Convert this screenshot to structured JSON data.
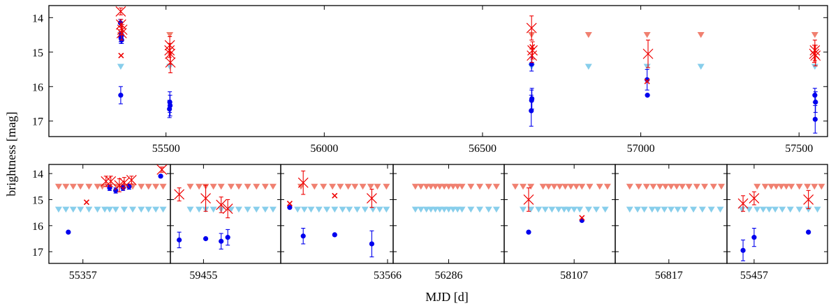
{
  "chart_data": {
    "type": "scatter",
    "xlabel": "MJD [d]",
    "ylabel": "brightness [mag]",
    "colors": {
      "bright_x": "#ee0000",
      "dot": "#0000ee",
      "upper_limit_red": "#f08070",
      "upper_limit_blue": "#87ceeb"
    },
    "main": {
      "xlim": [
        55130,
        57590
      ],
      "ylim": [
        17.45,
        13.65
      ],
      "xticks": [
        55500,
        56000,
        56500,
        57000,
        57500
      ],
      "yticks": [
        14,
        15,
        16,
        17
      ],
      "series": {
        "x_points": [
          {
            "x": 55357,
            "y": 13.82,
            "e": 0.1,
            "big": true
          },
          {
            "x": 55358,
            "y": 14.2,
            "e": 0.15,
            "big": true
          },
          {
            "x": 55360,
            "y": 14.45,
            "e": 0.2,
            "big": true
          },
          {
            "x": 55362,
            "y": 14.35,
            "e": 0.15,
            "big": true
          },
          {
            "x": 55358,
            "y": 15.1,
            "e": 0,
            "big": false
          },
          {
            "x": 55512,
            "y": 14.8,
            "e": 0.25,
            "big": true
          },
          {
            "x": 55513,
            "y": 15.05,
            "e": 0.3,
            "big": true
          },
          {
            "x": 55514,
            "y": 15.3,
            "e": 0.3,
            "big": true
          },
          {
            "x": 55511,
            "y": 14.95,
            "e": 0.2,
            "big": true
          },
          {
            "x": 56655,
            "y": 14.3,
            "e": 0.35,
            "big": true
          },
          {
            "x": 56658,
            "y": 14.95,
            "e": 0.25,
            "big": true
          },
          {
            "x": 56656,
            "y": 15.1,
            "e": 0.2,
            "big": true
          },
          {
            "x": 56657,
            "y": 14.85,
            "e": 0,
            "big": false
          },
          {
            "x": 57023,
            "y": 15.05,
            "e": 0.4,
            "big": true
          },
          {
            "x": 57020,
            "y": 15.85,
            "e": 0,
            "big": false
          },
          {
            "x": 57550,
            "y": 14.95,
            "e": 0.3,
            "big": true
          },
          {
            "x": 57552,
            "y": 15.1,
            "e": 0.3,
            "big": true
          },
          {
            "x": 57548,
            "y": 15.05,
            "e": 0.25,
            "big": true
          }
        ],
        "dots": [
          {
            "x": 55357,
            "y": 16.25,
            "e": 0.25
          },
          {
            "x": 55357,
            "y": 14.55,
            "e": 0.15
          },
          {
            "x": 55358,
            "y": 14.6,
            "e": 0.15
          },
          {
            "x": 55360,
            "y": 14.65,
            "e": 0.1
          },
          {
            "x": 55359,
            "y": 14.5,
            "e": 0.1
          },
          {
            "x": 55356,
            "y": 14.15,
            "e": 0.1
          },
          {
            "x": 55512,
            "y": 16.45,
            "e": 0.3
          },
          {
            "x": 55513,
            "y": 16.55,
            "e": 0.3
          },
          {
            "x": 55511,
            "y": 16.65,
            "e": 0.25
          },
          {
            "x": 56655,
            "y": 16.4,
            "e": 0.3
          },
          {
            "x": 56656,
            "y": 16.35,
            "e": 0.3
          },
          {
            "x": 56654,
            "y": 16.7,
            "e": 0.45
          },
          {
            "x": 56655,
            "y": 15.35,
            "e": 0.2
          },
          {
            "x": 57020,
            "y": 15.8,
            "e": 0.3
          },
          {
            "x": 57021,
            "y": 16.25,
            "e": 0
          },
          {
            "x": 57550,
            "y": 16.25,
            "e": 0.2
          },
          {
            "x": 57552,
            "y": 16.45,
            "e": 0.3
          },
          {
            "x": 57551,
            "y": 16.95,
            "e": 0.4
          }
        ],
        "limits_red": [
          {
            "x": 55357,
            "y": 14.5
          },
          {
            "x": 55512,
            "y": 14.5
          },
          {
            "x": 56655,
            "y": 14.5
          },
          {
            "x": 56835,
            "y": 14.5
          },
          {
            "x": 57020,
            "y": 14.5
          },
          {
            "x": 57190,
            "y": 14.5
          },
          {
            "x": 57550,
            "y": 14.5
          }
        ],
        "limits_blue": [
          {
            "x": 55357,
            "y": 15.42
          },
          {
            "x": 55512,
            "y": 15.42
          },
          {
            "x": 56655,
            "y": 15.42
          },
          {
            "x": 56835,
            "y": 15.42
          },
          {
            "x": 57020,
            "y": 15.42
          },
          {
            "x": 57190,
            "y": 15.42
          },
          {
            "x": 57550,
            "y": 15.42
          }
        ]
      }
    },
    "panels": [
      {
        "tick": "55357",
        "limits_red": [
          0.08,
          0.14,
          0.2,
          0.26,
          0.33,
          0.4,
          0.44,
          0.5,
          0.56,
          0.62,
          0.69,
          0.76,
          0.82,
          0.88,
          0.94
        ],
        "limits_blue": [
          0.08,
          0.14,
          0.2,
          0.26,
          0.33,
          0.4,
          0.46,
          0.5,
          0.55,
          0.62,
          0.69,
          0.76,
          0.82,
          0.88,
          0.94
        ],
        "x_points": [
          {
            "f": 0.31,
            "y": 15.1,
            "e": 0,
            "big": false
          },
          {
            "f": 0.47,
            "y": 14.3,
            "e": 0.2,
            "big": true
          },
          {
            "f": 0.51,
            "y": 14.3,
            "e": 0.2,
            "big": true
          },
          {
            "f": 0.58,
            "y": 14.45,
            "e": 0.25,
            "big": true
          },
          {
            "f": 0.62,
            "y": 14.35,
            "e": 0.2,
            "big": true
          },
          {
            "f": 0.68,
            "y": 14.25,
            "e": 0.15,
            "big": true
          },
          {
            "f": 0.93,
            "y": 13.85,
            "e": 0.1,
            "big": true
          }
        ],
        "dots": [
          {
            "f": 0.16,
            "y": 16.25,
            "e": 0
          },
          {
            "f": 0.5,
            "y": 14.55,
            "e": 0.1
          },
          {
            "f": 0.55,
            "y": 14.65,
            "e": 0.1
          },
          {
            "f": 0.61,
            "y": 14.55,
            "e": 0.1
          },
          {
            "f": 0.66,
            "y": 14.5,
            "e": 0.1
          },
          {
            "f": 0.92,
            "y": 14.1,
            "e": 0
          }
        ]
      },
      {
        "tick": "59455",
        "limits_red": [
          0.18,
          0.26,
          0.32,
          0.39,
          0.46,
          0.55,
          0.62,
          0.7,
          0.78,
          0.86,
          0.93
        ],
        "limits_blue": [
          0.18,
          0.26,
          0.32,
          0.39,
          0.46,
          0.55,
          0.62,
          0.7,
          0.78,
          0.86,
          0.93
        ],
        "x_points": [
          {
            "f": 0.08,
            "y": 14.8,
            "e": 0.25,
            "big": true
          },
          {
            "f": 0.32,
            "y": 14.95,
            "e": 0.5,
            "big": true
          },
          {
            "f": 0.46,
            "y": 15.2,
            "e": 0.3,
            "big": true
          },
          {
            "f": 0.52,
            "y": 15.35,
            "e": 0.35,
            "big": true
          }
        ],
        "dots": [
          {
            "f": 0.08,
            "y": 16.55,
            "e": 0.3
          },
          {
            "f": 0.32,
            "y": 16.5,
            "e": 0
          },
          {
            "f": 0.46,
            "y": 16.6,
            "e": 0.3
          },
          {
            "f": 0.52,
            "y": 16.45,
            "e": 0.3
          }
        ]
      },
      {
        "tick": "53566",
        "limits_red": [
          0.18,
          0.3,
          0.38,
          0.46,
          0.53,
          0.6,
          0.66,
          0.73,
          0.8,
          0.86,
          0.94
        ],
        "limits_blue": [
          0.15,
          0.21,
          0.27,
          0.34,
          0.41,
          0.48,
          0.55,
          0.61,
          0.68,
          0.75,
          0.82,
          0.88,
          0.94
        ],
        "x_points": [
          {
            "f": 0.08,
            "y": 15.15,
            "e": 0,
            "big": false
          },
          {
            "f": 0.2,
            "y": 14.35,
            "e": 0.45,
            "big": true
          },
          {
            "f": 0.48,
            "y": 14.85,
            "e": 0,
            "big": false
          },
          {
            "f": 0.81,
            "y": 14.95,
            "e": 0.35,
            "big": true
          }
        ],
        "dots": [
          {
            "f": 0.08,
            "y": 15.3,
            "e": 0
          },
          {
            "f": 0.2,
            "y": 16.4,
            "e": 0.3
          },
          {
            "f": 0.48,
            "y": 16.35,
            "e": 0
          },
          {
            "f": 0.81,
            "y": 16.7,
            "e": 0.5
          }
        ]
      },
      {
        "tick": "56286",
        "limits_red": [
          0.2,
          0.25,
          0.3,
          0.34,
          0.38,
          0.42,
          0.46,
          0.5,
          0.54,
          0.58,
          0.62,
          0.7,
          0.78,
          0.86,
          0.93
        ],
        "limits_blue": [
          0.2,
          0.25,
          0.3,
          0.34,
          0.38,
          0.42,
          0.46,
          0.5,
          0.54,
          0.58,
          0.62,
          0.7,
          0.78,
          0.86,
          0.93
        ],
        "x_points": [],
        "dots": []
      },
      {
        "tick": "58107",
        "limits_red": [
          0.1,
          0.17,
          0.24,
          0.35,
          0.4,
          0.45,
          0.5,
          0.55,
          0.6,
          0.65,
          0.7,
          0.77,
          0.86,
          0.93
        ],
        "limits_blue": [
          0.17,
          0.24,
          0.31,
          0.37,
          0.43,
          0.49,
          0.54,
          0.58,
          0.63,
          0.68,
          0.76,
          0.83,
          0.91
        ],
        "x_points": [
          {
            "f": 0.22,
            "y": 15.0,
            "e": 0.45,
            "big": true
          },
          {
            "f": 0.7,
            "y": 15.7,
            "e": 0,
            "big": false
          }
        ],
        "dots": [
          {
            "f": 0.22,
            "y": 16.25,
            "e": 0
          },
          {
            "f": 0.7,
            "y": 15.8,
            "e": 0
          }
        ]
      },
      {
        "tick": "56817",
        "limits_red": [
          0.13,
          0.21,
          0.28,
          0.34,
          0.4,
          0.45,
          0.5,
          0.55,
          0.6,
          0.66,
          0.73,
          0.8,
          0.88,
          0.95
        ],
        "limits_blue": [
          0.13,
          0.2,
          0.26,
          0.33,
          0.38,
          0.44,
          0.5,
          0.56,
          0.62,
          0.7,
          0.78,
          0.86,
          0.94
        ],
        "x_points": [],
        "dots": []
      },
      {
        "tick": "55457",
        "limits_red": [
          0.3,
          0.38,
          0.44,
          0.49,
          0.54,
          0.59,
          0.64,
          0.72,
          0.8,
          0.87,
          0.94
        ],
        "limits_blue": [
          0.15,
          0.22,
          0.3,
          0.36,
          0.42,
          0.48,
          0.55,
          0.63,
          0.72,
          0.81,
          0.9
        ],
        "x_points": [
          {
            "f": 0.16,
            "y": 15.15,
            "e": 0.3,
            "big": true
          },
          {
            "f": 0.27,
            "y": 14.95,
            "e": 0.25,
            "big": true
          },
          {
            "f": 0.81,
            "y": 15.0,
            "e": 0.35,
            "big": true
          }
        ],
        "dots": [
          {
            "f": 0.16,
            "y": 16.95,
            "e": 0.4
          },
          {
            "f": 0.27,
            "y": 16.45,
            "e": 0.35
          },
          {
            "f": 0.81,
            "y": 16.25,
            "e": 0
          }
        ]
      }
    ],
    "panel_yticks": [
      14,
      15,
      16,
      17
    ],
    "panel_ylim": [
      17.45,
      13.65
    ]
  }
}
